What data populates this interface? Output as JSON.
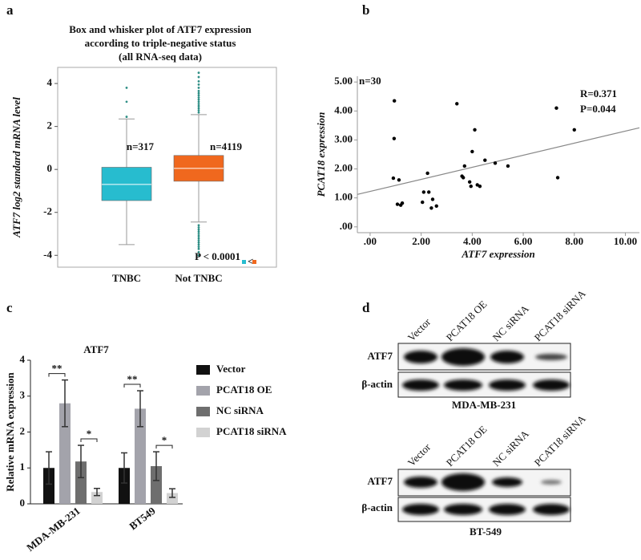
{
  "panel_labels": [
    "a",
    "b",
    "c",
    "d"
  ],
  "chart_data": [
    {
      "type": "box",
      "title_lines": [
        "Box and whisker plot of ATF7 expression",
        "according to triple-negative status",
        "(all RNA-seq data)"
      ],
      "y_label": "ATF7 log2 standard mRNA level",
      "categories": [
        "TNBC",
        "Not TNBC"
      ],
      "colors": [
        "#27bccf",
        "#f0681e"
      ],
      "stats": [
        {
          "whislo": -3.5,
          "q1": -1.45,
          "med": -0.7,
          "q3": 0.1,
          "whishi": 2.35,
          "fliers": [
            2.45,
            3.15,
            3.8
          ]
        },
        {
          "whislo": -2.45,
          "q1": -0.55,
          "med": 0.05,
          "q3": 0.65,
          "whishi": 2.55,
          "fliers": [
            2.65,
            2.75,
            2.85,
            2.95,
            3.05,
            3.15,
            3.25,
            3.35,
            3.45,
            3.55,
            3.65,
            3.8,
            3.95,
            4.1,
            4.3,
            4.5,
            -2.6,
            -2.7,
            -2.8,
            -2.9,
            -3.0,
            -3.1,
            -3.2,
            -3.3,
            -3.4,
            -3.5,
            -3.6,
            -3.7,
            -3.85,
            -4.0
          ]
        }
      ],
      "annotations": [
        "n=317",
        "n=4119",
        "P < 0.0001"
      ],
      "ylim": [
        -4.55,
        4.75
      ],
      "yticks": [
        -4,
        -2,
        0,
        2,
        4
      ]
    },
    {
      "type": "scatter",
      "x_label": "ATF7 expression",
      "y_label": "PCAT18 expression",
      "x": [
        0.95,
        0.94,
        0.91,
        1.13,
        1.07,
        1.2,
        1.26,
        2.25,
        2.3,
        2.4,
        2.45,
        2.6,
        2.1,
        2.05,
        3.4,
        3.6,
        3.65,
        3.7,
        3.9,
        4.0,
        4.1,
        4.2,
        4.3,
        4.5,
        4.9,
        5.4,
        7.3,
        7.35,
        8.0,
        3.95
      ],
      "y": [
        4.35,
        3.05,
        1.68,
        1.62,
        0.78,
        0.75,
        0.82,
        1.85,
        1.2,
        0.65,
        0.95,
        0.72,
        1.2,
        0.85,
        4.25,
        1.75,
        1.7,
        2.1,
        1.55,
        2.6,
        3.35,
        1.45,
        1.4,
        2.3,
        2.2,
        2.1,
        4.1,
        1.7,
        3.35,
        1.4
      ],
      "trend_line": {
        "x": [
          -0.5,
          10.55
        ],
        "y": [
          1.12,
          3.42
        ]
      },
      "annotations": [
        "n=30",
        "R=0.371",
        "P=0.044"
      ],
      "xlim": [
        -0.5,
        10.55
      ],
      "ylim": [
        -0.2,
        5.2
      ],
      "xticks": [
        {
          "value": 0,
          "label": ".00"
        },
        {
          "value": 2,
          "label": "2.00"
        },
        {
          "value": 4,
          "label": "4.00"
        },
        {
          "value": 6,
          "label": "6.00"
        },
        {
          "value": 8,
          "label": "8.00"
        },
        {
          "value": 10,
          "label": "10.00"
        }
      ],
      "yticks": [
        {
          "value": 0,
          "label": ".00"
        },
        {
          "value": 1,
          "label": "1.00"
        },
        {
          "value": 2,
          "label": "2.00"
        },
        {
          "value": 3,
          "label": "3.00"
        },
        {
          "value": 4,
          "label": "4.00"
        },
        {
          "value": 5,
          "label": "5.00"
        }
      ]
    },
    {
      "type": "bar",
      "title": "ATF7",
      "y_label": "Relative mRNA expression",
      "categories": [
        "MDA-MB-231",
        "BT549"
      ],
      "series": [
        {
          "name": "Vector",
          "color": "#111111",
          "values": [
            1.0,
            1.0
          ],
          "errors": [
            0.45,
            0.42
          ]
        },
        {
          "name": "PCAT18 OE",
          "color": "#a3a3ab",
          "values": [
            2.8,
            2.65
          ],
          "errors": [
            0.65,
            0.5
          ]
        },
        {
          "name": "NC siRNA",
          "color": "#6e6e6e",
          "values": [
            1.18,
            1.05
          ],
          "errors": [
            0.45,
            0.4
          ]
        },
        {
          "name": "PCAT18 siRNA",
          "color": "#d2d2d2",
          "values": [
            0.33,
            0.3
          ],
          "errors": [
            0.1,
            0.12
          ]
        }
      ],
      "significance": [
        {
          "label": "**",
          "category": "MDA-MB-231",
          "between": [
            "Vector",
            "PCAT18 OE"
          ]
        },
        {
          "label": "*",
          "category": "MDA-MB-231",
          "between": [
            "NC siRNA",
            "PCAT18 siRNA"
          ]
        },
        {
          "label": "**",
          "category": "BT549",
          "between": [
            "Vector",
            "PCAT18 OE"
          ]
        },
        {
          "label": "*",
          "category": "BT549",
          "between": [
            "NC siRNA",
            "PCAT18 siRNA"
          ]
        }
      ],
      "ylim": [
        0,
        4
      ],
      "yticks": [
        0,
        1,
        2,
        3,
        4
      ]
    }
  ],
  "blots": [
    {
      "lanes": [
        "Vector",
        "PCAT18 OE",
        "NC siRNA",
        "PCAT18 siRNA"
      ],
      "rows": [
        "ATF7",
        "β-actin"
      ],
      "cell_line": "MDA-MB-231"
    },
    {
      "lanes": [
        "Vector",
        "PCAT18 OE",
        "NC siRNA",
        "PCAT18 siRNA"
      ],
      "rows": [
        "ATF7",
        "β-actin"
      ],
      "cell_line": "BT-549"
    }
  ]
}
